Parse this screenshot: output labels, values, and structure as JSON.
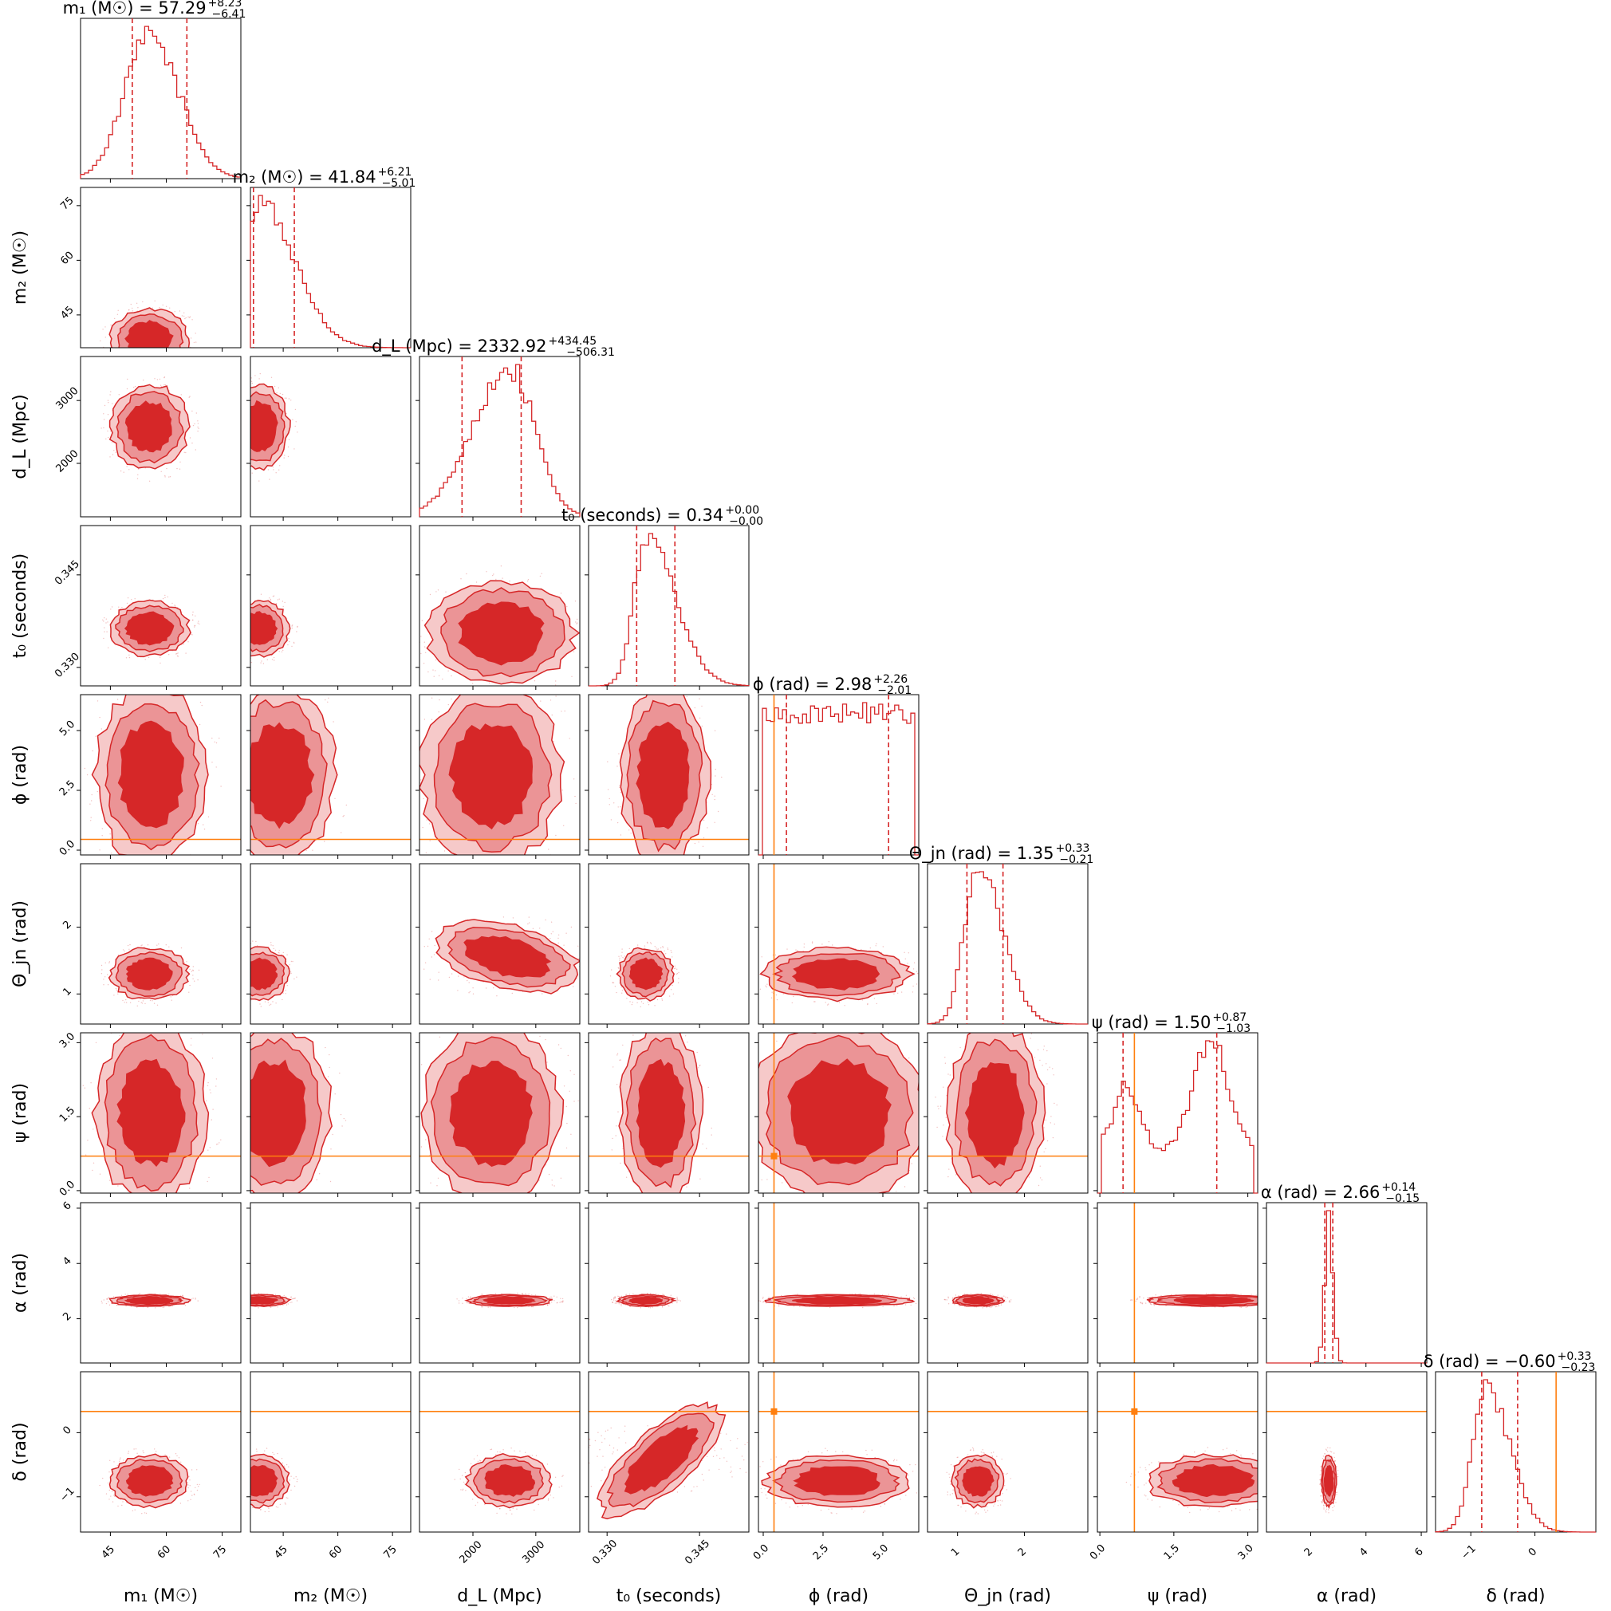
{
  "chart_data": {
    "type": "corner",
    "colors": {
      "posterior": "#d62728",
      "truth": "#ff7f0e"
    },
    "parameters": [
      {
        "key": "m1",
        "label": "m₁ (M☉)",
        "title": "m₁ (M☉) = 57.29",
        "median": 57.29,
        "err_plus": "+8.23",
        "err_minus": "−6.41",
        "range": [
          37,
          80
        ],
        "ticks": [
          45,
          60,
          75
        ],
        "tick_labels": [
          "45",
          "60",
          "75"
        ],
        "mode": 55.5,
        "skew": 0.15,
        "truth": null,
        "q_lo": 50.88,
        "q_hi": 65.52
      },
      {
        "key": "m2",
        "label": "m₂ (M☉)",
        "title": "m₂ (M☉) = 41.84",
        "median": 41.84,
        "err_plus": "+6.21",
        "err_minus": "−5.01",
        "range": [
          36,
          80
        ],
        "ticks": [
          45,
          60,
          75
        ],
        "tick_labels": [
          "45",
          "60",
          "75"
        ],
        "mode": 38.5,
        "skew": 1.2,
        "truth": null,
        "q_lo": 36.83,
        "q_hi": 48.05
      },
      {
        "key": "dL",
        "label": "d_L (Mpc)",
        "title": "d_L (Mpc) = 2332.92",
        "median": 2332.92,
        "err_plus": "+434.45",
        "err_minus": "−506.31",
        "range": [
          1150,
          3700
        ],
        "ticks": [
          2000,
          3000
        ],
        "tick_labels": [
          "2000",
          "3000"
        ],
        "mode": 2580,
        "skew": -0.3,
        "truth": null,
        "q_lo": 1826.61,
        "q_hi": 2767.37
      },
      {
        "key": "t0",
        "label": "t₀ (seconds)",
        "title": "t₀ (seconds) = 0.34",
        "median": 0.34,
        "err_plus": "+0.00",
        "err_minus": "−0.00",
        "range": [
          0.327,
          0.353
        ],
        "ticks": [
          0.33,
          0.345
        ],
        "tick_labels": [
          "0.330",
          "0.345"
        ],
        "mode": 0.3363,
        "skew": 0.9,
        "truth": null,
        "q_lo": 0.3348,
        "q_hi": 0.341
      },
      {
        "key": "phi",
        "label": "ϕ (rad)",
        "title": "ϕ (rad) = 2.98",
        "median": 2.98,
        "err_plus": "+2.26",
        "err_minus": "−2.01",
        "range": [
          -0.2,
          6.5
        ],
        "ticks": [
          0.0,
          2.5,
          5.0
        ],
        "tick_labels": [
          "0.0",
          "2.5",
          "5.0"
        ],
        "mode": 3.1,
        "skew": 0,
        "truth": 0.45,
        "q_lo": 0.97,
        "q_hi": 5.24
      },
      {
        "key": "theta_jn",
        "label": "Θ_jn (rad)",
        "title": "Θ_jn (rad) = 1.35",
        "median": 1.35,
        "err_plus": "+0.33",
        "err_minus": "−0.21",
        "range": [
          0.55,
          2.95
        ],
        "ticks": [
          1,
          2
        ],
        "tick_labels": [
          "1",
          "2"
        ],
        "mode": 1.3,
        "skew": 0.6,
        "truth": null,
        "q_lo": 1.14,
        "q_hi": 1.68
      },
      {
        "key": "psi",
        "label": "ψ (rad)",
        "title": "ψ (rad) = 1.50",
        "median": 1.5,
        "err_plus": "+0.87",
        "err_minus": "−1.03",
        "range": [
          -0.05,
          3.2
        ],
        "ticks": [
          0.0,
          1.5,
          3.0
        ],
        "tick_labels": [
          "0.0",
          "1.5",
          "3.0"
        ],
        "mode": 2.3,
        "skew": 0,
        "truth": 0.7,
        "q_lo": 0.47,
        "q_hi": 2.37
      },
      {
        "key": "alpha",
        "label": "α (rad)",
        "title": "α (rad) = 2.66",
        "median": 2.66,
        "err_plus": "+0.14",
        "err_minus": "−0.15",
        "range": [
          0.4,
          6.2
        ],
        "ticks": [
          2,
          4,
          6
        ],
        "tick_labels": [
          "2",
          "4",
          "6"
        ],
        "mode": 2.66,
        "skew": 0,
        "truth": null,
        "q_lo": 2.51,
        "q_hi": 2.8
      },
      {
        "key": "delta",
        "label": "δ (rad)",
        "title": "δ (rad) = −0.60",
        "median": -0.6,
        "err_plus": "+0.33",
        "err_minus": "−0.23",
        "range": [
          -1.55,
          0.95
        ],
        "ticks": [
          -1,
          0
        ],
        "tick_labels": [
          "−1",
          "0"
        ],
        "mode": -0.75,
        "skew": 0.5,
        "truth": 0.33,
        "q_lo": -0.83,
        "q_hi": -0.27
      }
    ]
  }
}
